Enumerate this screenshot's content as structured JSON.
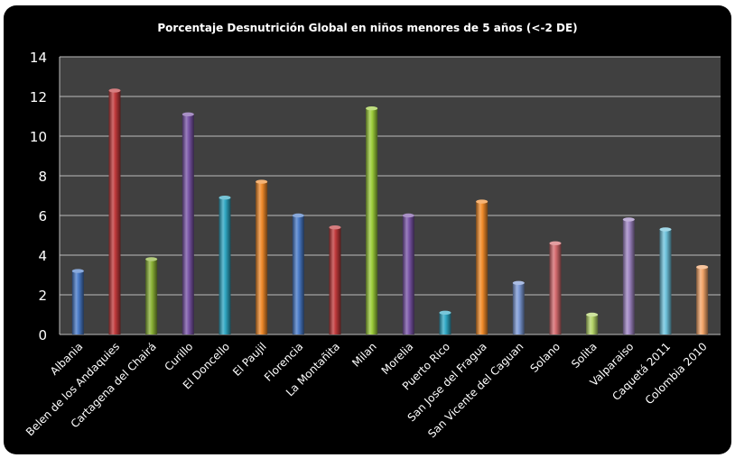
{
  "chart_data": {
    "type": "bar",
    "title": "Porcentaje Desnutrición Global en niños menores de 5 años (<-2 DE)",
    "categories": [
      "Albania",
      "Belen de los Andaquies",
      "Cartagena del Chairá",
      "Curillo",
      "El Doncello",
      "El Paujil",
      "Florencia",
      "La Montañita",
      "Milan",
      "Morelia",
      "Puerto Rico",
      "San Jose del Fragua",
      "San Vicente del Caguan",
      "Solano",
      "Solita",
      "Valparaiso",
      "Caquetá 2011",
      "Colombia 2010"
    ],
    "values": [
      3.2,
      12.3,
      3.8,
      11.1,
      6.9,
      7.7,
      6.0,
      5.4,
      11.4,
      6.0,
      1.1,
      6.7,
      2.6,
      4.6,
      1.0,
      5.8,
      5.3,
      3.4
    ],
    "colors": [
      "#4a7bc8",
      "#c0393b",
      "#8bb236",
      "#7a55a8",
      "#2fa6c2",
      "#f08a2a",
      "#4a7bc8",
      "#c0393b",
      "#9ccc3a",
      "#7a55a8",
      "#31a9c6",
      "#f28c2a",
      "#7d9ad6",
      "#d46a6e",
      "#b5d56a",
      "#9f86c4",
      "#6fc3dc",
      "#f4a66a"
    ],
    "ylim": [
      0,
      14
    ],
    "yticks": [
      0,
      2,
      4,
      6,
      8,
      10,
      12,
      14
    ],
    "xlabel": "",
    "ylabel": "",
    "grid": true,
    "legend": "none",
    "background": "#404040"
  }
}
